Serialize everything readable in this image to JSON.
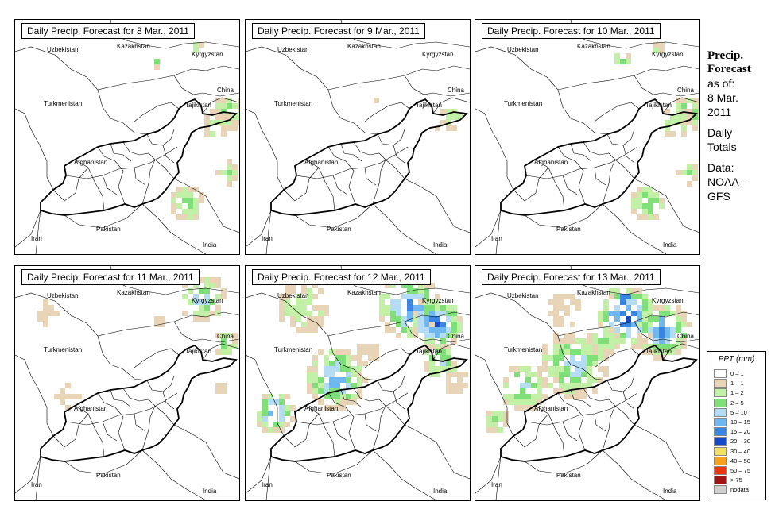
{
  "panels": [
    {
      "title": "Daily Precip. Forecast for  8 Mar., 2011",
      "intensity": 1
    },
    {
      "title": "Daily Precip. Forecast for  9 Mar., 2011",
      "intensity": 0
    },
    {
      "title": "Daily Precip. Forecast for  10 Mar., 2011",
      "intensity": 1
    },
    {
      "title": "Daily Precip. Forecast for  11 Mar., 2011",
      "intensity": 2
    },
    {
      "title": "Daily Precip. Forecast for  12 Mar., 2011",
      "intensity": 3
    },
    {
      "title": "Daily Precip. Forecast for  13 Mar., 2011",
      "intensity": 4
    }
  ],
  "countries": {
    "uzbekistan": "Uzbekistan",
    "kazakhstan": "Kazakhstan",
    "kyrgyzstan": "Kyrgyzstan",
    "china": "China",
    "turkmenistan": "Turkmenistan",
    "tajikistan": "Tajikistan",
    "afghanistan": "Afghanistan",
    "iran": "Iran",
    "pakistan": "Pakistan",
    "india": "India"
  },
  "side": {
    "title1": "Precip.",
    "title2": "Forecast",
    "asof": "as of:",
    "date1": "8 Mar.",
    "date2": "2011",
    "daily": "Daily",
    "totals": "Totals",
    "data1": "Data:",
    "data2": "NOAA–",
    "data3": "GFS"
  },
  "legend": {
    "title": "PPT (mm)",
    "items": [
      {
        "label": "0 – 1",
        "color": "#ffffff"
      },
      {
        "label": "1 – 1",
        "color": "#e8d5b8"
      },
      {
        "label": "1 – 2",
        "color": "#c2f0a6"
      },
      {
        "label": "2 – 5",
        "color": "#7fe07a"
      },
      {
        "label": "5 – 10",
        "color": "#b4dcf5"
      },
      {
        "label": "10 – 15",
        "color": "#6fb7ef"
      },
      {
        "label": "15 – 20",
        "color": "#3a85e3"
      },
      {
        "label": "20 – 30",
        "color": "#1449c8"
      },
      {
        "label": "30 – 40",
        "color": "#f2df63"
      },
      {
        "label": "40 – 50",
        "color": "#f7a21b"
      },
      {
        "label": "50 – 75",
        "color": "#e8380d"
      },
      {
        "label": "> 75",
        "color": "#a01414"
      },
      {
        "label": "nodata",
        "color": "#cfcfcf"
      }
    ]
  }
}
